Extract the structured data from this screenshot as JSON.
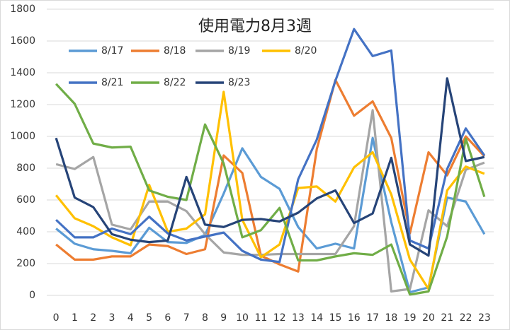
{
  "chart_data": {
    "type": "line",
    "title": "使用電力8月3週",
    "categories": [
      0,
      1,
      2,
      3,
      4,
      5,
      6,
      7,
      8,
      9,
      10,
      11,
      12,
      13,
      14,
      15,
      16,
      17,
      18,
      19,
      20,
      21,
      22,
      23
    ],
    "ylim": [
      0,
      1800
    ],
    "yticks": [
      0,
      200,
      400,
      600,
      800,
      1000,
      1200,
      1400,
      1600,
      1800
    ],
    "grid": true,
    "series": [
      {
        "name": "8/17",
        "color": "#5B9BD5",
        "values": [
          420,
          325,
          290,
          280,
          265,
          425,
          335,
          330,
          380,
          640,
          925,
          745,
          670,
          430,
          295,
          325,
          295,
          990,
          460,
          20,
          50,
          615,
          590,
          385
        ]
      },
      {
        "name": "8/18",
        "color": "#ED7D31",
        "values": [
          320,
          225,
          225,
          245,
          245,
          320,
          310,
          260,
          290,
          880,
          770,
          250,
          195,
          150,
          920,
          1355,
          1130,
          1220,
          990,
          390,
          900,
          755,
          1000,
          875
        ]
      },
      {
        "name": "8/19",
        "color": "#A5A5A5",
        "values": [
          825,
          795,
          870,
          445,
          415,
          590,
          590,
          530,
          385,
          270,
          255,
          255,
          260,
          260,
          260,
          260,
          435,
          1165,
          25,
          40,
          535,
          435,
          790,
          835
        ]
      },
      {
        "name": "8/20",
        "color": "#FFC000",
        "values": [
          630,
          485,
          435,
          365,
          315,
          695,
          400,
          420,
          510,
          1280,
          475,
          240,
          320,
          675,
          685,
          590,
          805,
          900,
          635,
          225,
          40,
          660,
          810,
          765
        ]
      },
      {
        "name": "8/21",
        "color": "#4472C4",
        "values": [
          475,
          365,
          365,
          420,
          385,
          495,
          390,
          345,
          370,
          395,
          280,
          225,
          210,
          730,
          980,
          1350,
          1675,
          1505,
          1540,
          345,
          295,
          795,
          1050,
          880
        ]
      },
      {
        "name": "8/22",
        "color": "#70AD47",
        "values": [
          1330,
          1205,
          955,
          930,
          935,
          660,
          620,
          600,
          1075,
          830,
          365,
          410,
          550,
          220,
          220,
          245,
          265,
          255,
          320,
          5,
          25,
          370,
          985,
          620
        ]
      },
      {
        "name": "8/23",
        "color": "#264478",
        "values": [
          990,
          615,
          555,
          385,
          350,
          335,
          345,
          745,
          445,
          430,
          475,
          480,
          465,
          520,
          610,
          660,
          455,
          515,
          865,
          320,
          250,
          1365,
          845,
          870
        ]
      }
    ]
  }
}
